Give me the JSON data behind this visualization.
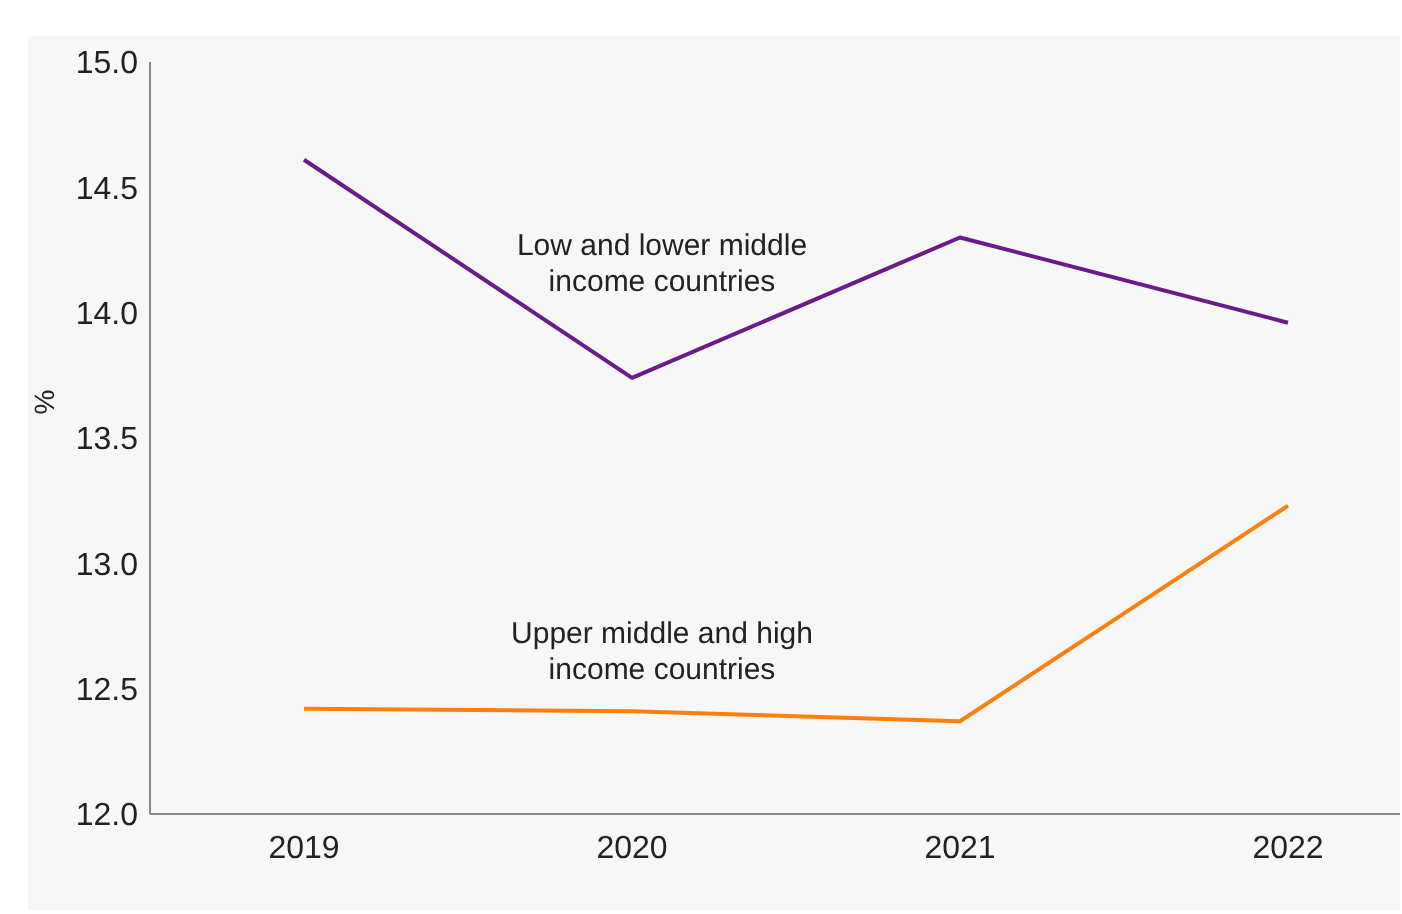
{
  "chart_data": {
    "type": "line",
    "ylabel": "%",
    "categories": [
      "2019",
      "2020",
      "2021",
      "2022"
    ],
    "ylim": [
      12,
      15
    ],
    "yticks": [
      {
        "value": 12,
        "label": "12.0"
      },
      {
        "value": 12.5,
        "label": "12.5"
      },
      {
        "value": 13,
        "label": "13.0"
      },
      {
        "value": 13.5,
        "label": "13.5"
      },
      {
        "value": 14,
        "label": "14.0"
      },
      {
        "value": 14.5,
        "label": "14.5"
      },
      {
        "value": 15,
        "label": "15.0"
      }
    ],
    "grid": false,
    "legend": false,
    "marker": "none",
    "line_style": "solid",
    "series": [
      {
        "name": "Low and lower middle income countries",
        "color": "#6a1b8a",
        "values": [
          14.61,
          13.74,
          14.3,
          13.96
        ]
      },
      {
        "name": "Upper middle and high income countries",
        "color": "#ff7f0e",
        "values": [
          12.42,
          12.41,
          12.37,
          13.23
        ]
      }
    ]
  }
}
